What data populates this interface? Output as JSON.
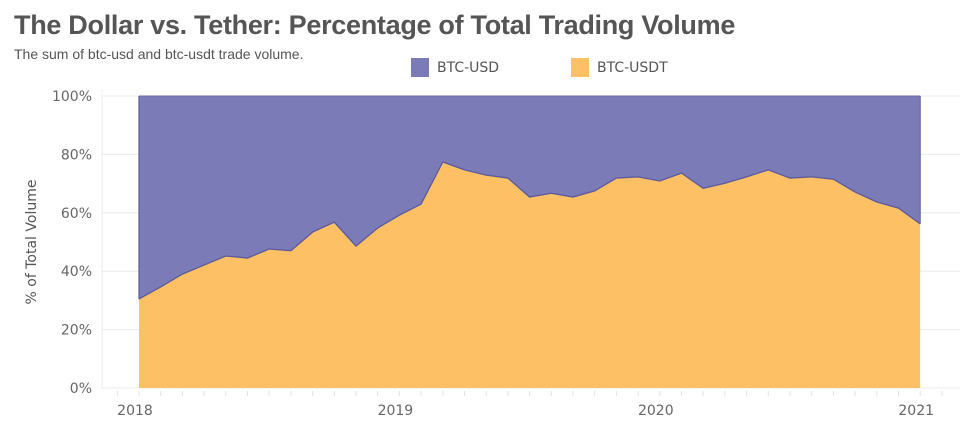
{
  "header": {
    "title": "The Dollar vs. Tether: Percentage of Total Trading Volume",
    "subtitle": "The sum of btc-usd and btc-usdt trade volume."
  },
  "legend": [
    {
      "label": "BTC-USD",
      "color": "#7b7bb8"
    },
    {
      "label": "BTC-USDT",
      "color": "#fdc064"
    }
  ],
  "chart_data": {
    "type": "area",
    "stacked": true,
    "normalized": true,
    "title": "The Dollar vs. Tether: Percentage of Total Trading Volume",
    "subtitle": "The sum of btc-usd and btc-usdt trade volume.",
    "xlabel": "",
    "ylabel": "% of Total Volume",
    "x_granularity": "monthly",
    "x_start": "2018-01",
    "x_end": "2021-01",
    "x_tick_labels": [
      "2018",
      "2019",
      "2020",
      "2021"
    ],
    "x_range_months": [
      -1,
      37
    ],
    "y_tick_labels": [
      "0%",
      "20%",
      "40%",
      "60%",
      "80%",
      "100%"
    ],
    "y_ticks": [
      0,
      20,
      40,
      60,
      80,
      100
    ],
    "ylim": [
      0,
      100
    ],
    "grid": true,
    "legend_position": "top",
    "series": [
      {
        "name": "BTC-USDT",
        "color": "#fdc064",
        "values": [
          30.5,
          34.6,
          39.0,
          42.1,
          45.2,
          44.5,
          47.6,
          47.0,
          53.4,
          56.8,
          48.6,
          54.8,
          59.2,
          63.0,
          77.4,
          74.7,
          72.9,
          71.9,
          65.4,
          66.7,
          65.4,
          67.5,
          71.9,
          72.3,
          70.9,
          73.6,
          68.4,
          70.1,
          72.3,
          74.7,
          71.9,
          72.3,
          71.5,
          67.1,
          63.7,
          61.6,
          56.2
        ]
      },
      {
        "name": "BTC-USD",
        "color": "#7b7bb8",
        "values": [
          69.5,
          65.4,
          61.0,
          57.9,
          54.8,
          55.5,
          52.4,
          53.0,
          46.6,
          43.2,
          51.4,
          45.2,
          40.8,
          37.0,
          22.6,
          25.3,
          27.1,
          28.1,
          34.6,
          33.3,
          34.6,
          32.5,
          28.1,
          27.7,
          29.1,
          26.4,
          31.6,
          29.9,
          27.7,
          25.3,
          28.1,
          27.7,
          28.5,
          32.9,
          36.3,
          38.4,
          43.8
        ]
      }
    ]
  }
}
